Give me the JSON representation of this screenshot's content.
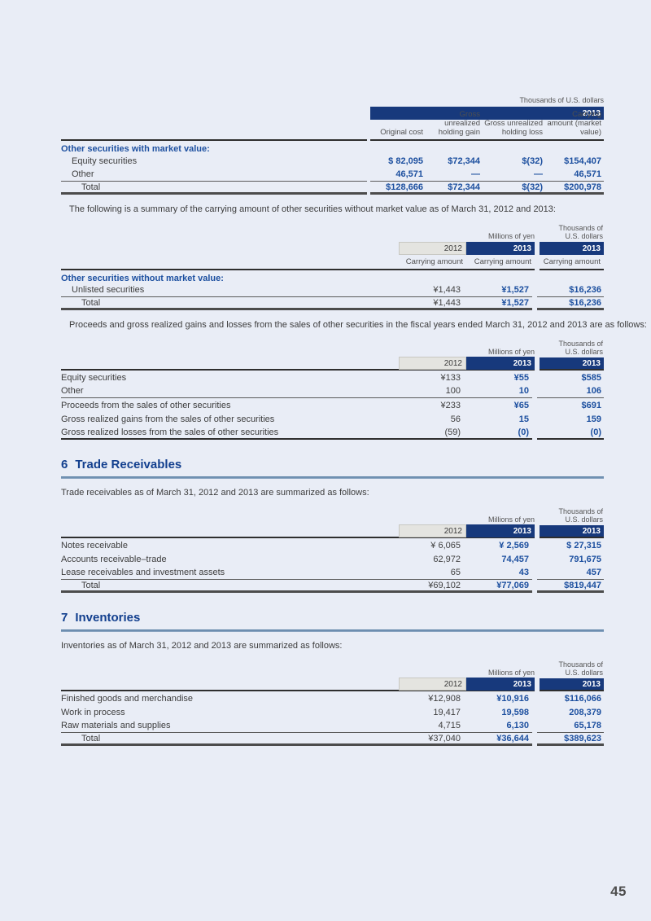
{
  "page_number": "45",
  "table1": {
    "unit_label": "Thousands of U.S. dollars",
    "year": "2013",
    "col_headers": [
      "Original cost",
      "Gross unrealized holding gain",
      "Gross unrealized holding loss",
      "Carrying amount (market value)"
    ],
    "group_label": "Other securities with market value:",
    "rows": [
      {
        "label": "Equity securities",
        "v1": "$ 82,095",
        "v2": "$72,344",
        "v3": "$(32)",
        "v4": "$154,407"
      },
      {
        "label": "Other",
        "v1": "46,571",
        "v2": "—",
        "v3": "—",
        "v4": "46,571"
      }
    ],
    "total": {
      "label": "Total",
      "v1": "$128,666",
      "v2": "$72,344",
      "v3": "$(32)",
      "v4": "$200,978"
    }
  },
  "para1": "The following is a summary of the carrying amount of other securities without market value as of March 31, 2012 and 2013:",
  "table2": {
    "yen_unit": "Millions of yen",
    "usd_unit_line1": "Thousands of",
    "usd_unit_line2": "U.S. dollars",
    "y2012": "2012",
    "y2013": "2013",
    "y2013usd": "2013",
    "subheads": {
      "c1": "Carrying amount",
      "c2": "Carrying amount",
      "c3": "Carrying amount"
    },
    "group_label": "Other securities without market value:",
    "rows": [
      {
        "label": "Unlisted securities",
        "v1": "¥1,443",
        "v2": "¥1,527",
        "v3": "$16,236"
      }
    ],
    "total": {
      "label": "Total",
      "v1": "¥1,443",
      "v2": "¥1,527",
      "v3": "$16,236"
    }
  },
  "para2": "Proceeds and gross realized gains and losses from the sales of other securities in the fiscal years ended March 31, 2012 and 2013 are as follows:",
  "table3": {
    "yen_unit": "Millions of yen",
    "usd_unit_line1": "Thousands of",
    "usd_unit_line2": "U.S. dollars",
    "y2012": "2012",
    "y2013": "2013",
    "y2013usd": "2013",
    "rows_a": [
      {
        "label": "Equity securities",
        "v1": "¥133",
        "v2": "¥55",
        "v3": "$585"
      },
      {
        "label": "Other",
        "v1": "100",
        "v2": "10",
        "v3": "106"
      }
    ],
    "rows_b": [
      {
        "label": "Proceeds from the sales of other securities",
        "v1": "¥233",
        "v2": "¥65",
        "v3": "$691"
      },
      {
        "label": "Gross realized gains from the sales of other securities",
        "v1": "56",
        "v2": "15",
        "v3": "159"
      },
      {
        "label": "Gross realized losses from the sales of other securities",
        "v1": "(59)",
        "v2": "(0)",
        "v3": "(0)"
      }
    ]
  },
  "section6": {
    "number": "6",
    "title": "Trade Receivables",
    "para": "Trade receivables as of March 31, 2012 and 2013 are summarized as follows:"
  },
  "table4": {
    "yen_unit": "Millions of yen",
    "usd_unit_line1": "Thousands of",
    "usd_unit_line2": "U.S. dollars",
    "y2012": "2012",
    "y2013": "2013",
    "y2013usd": "2013",
    "rows": [
      {
        "label": "Notes receivable",
        "v1": "¥ 6,065",
        "v2": "¥ 2,569",
        "v3": "$ 27,315"
      },
      {
        "label": "Accounts receivable–trade",
        "v1": "62,972",
        "v2": "74,457",
        "v3": "791,675"
      },
      {
        "label": "Lease receivables and investment assets",
        "v1": "65",
        "v2": "43",
        "v3": "457"
      }
    ],
    "total": {
      "label": "Total",
      "v1": "¥69,102",
      "v2": "¥77,069",
      "v3": "$819,447"
    }
  },
  "section7": {
    "number": "7",
    "title": "Inventories",
    "para": "Inventories as of March 31, 2012 and 2013 are summarized as follows:"
  },
  "table5": {
    "yen_unit": "Millions of yen",
    "usd_unit_line1": "Thousands of",
    "usd_unit_line2": "U.S. dollars",
    "y2012": "2012",
    "y2013": "2013",
    "y2013usd": "2013",
    "rows": [
      {
        "label": "Finished goods and merchandise",
        "v1": "¥12,908",
        "v2": "¥10,916",
        "v3": "$116,066"
      },
      {
        "label": "Work in process",
        "v1": "19,417",
        "v2": "19,598",
        "v3": "208,379"
      },
      {
        "label": "Raw materials and supplies",
        "v1": "4,715",
        "v2": "6,130",
        "v3": "65,178"
      }
    ],
    "total": {
      "label": "Total",
      "v1": "¥37,040",
      "v2": "¥36,644",
      "v3": "$389,623"
    }
  }
}
